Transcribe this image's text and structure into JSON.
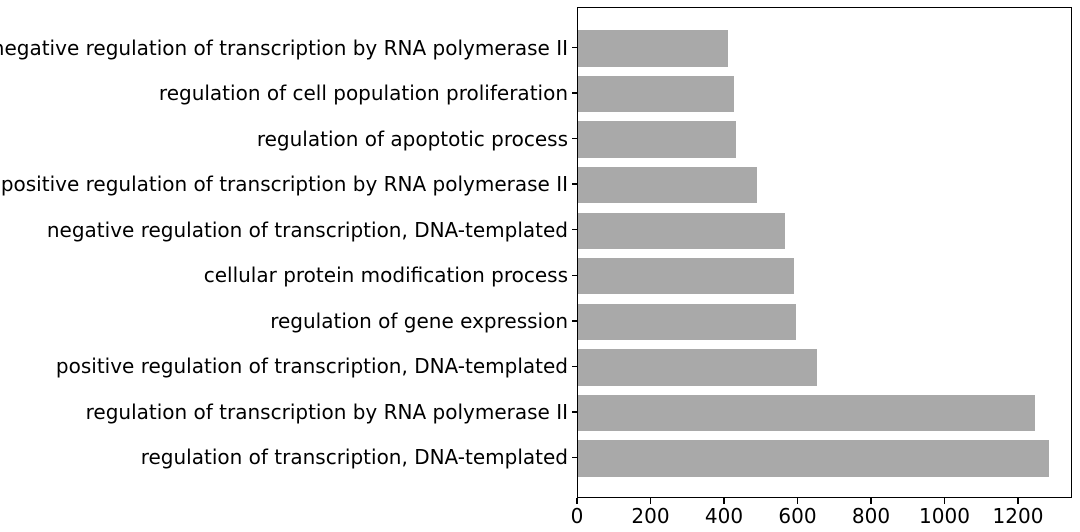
{
  "figure": {
    "background_color": "#ffffff",
    "title": ""
  },
  "chart_data": {
    "type": "bar",
    "orientation": "horizontal",
    "title": "",
    "xlabel": "",
    "ylabel": "",
    "categories": [
      "negative regulation of transcription by RNA polymerase II",
      "regulation of cell population proliferation",
      "regulation of apoptotic process",
      "positive regulation of transcription by RNA polymerase II",
      "negative regulation of transcription, DNA-templated",
      "cellular protein modification process",
      "regulation of gene expression",
      "positive regulation of transcription, DNA-templated",
      "regulation of transcription by RNA polymerase II",
      "regulation of transcription, DNA-templated"
    ],
    "values": [
      411,
      427,
      433,
      490,
      565,
      590,
      596,
      653,
      1249,
      1287
    ],
    "xlim": [
      0,
      1347
    ],
    "xticks": [
      0,
      200,
      400,
      600,
      800,
      1000,
      1200
    ],
    "grid": false,
    "legend_position": "none",
    "bar_color": "#a9a9a9",
    "axis_color": "#000000",
    "text_color": "#000000"
  }
}
